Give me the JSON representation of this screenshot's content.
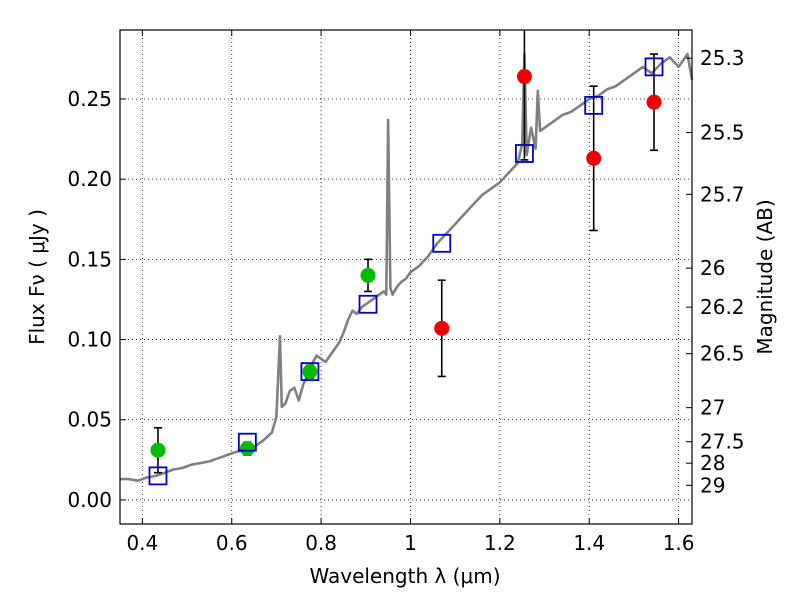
{
  "chart_data": {
    "type": "scatter",
    "xlabel": "Wavelength λ (μm)",
    "ylabel": "Flux  Fν  ( μJy )",
    "y2label": "Magnitude (AB)",
    "xlim": [
      0.35,
      1.63
    ],
    "ylim": [
      -0.015,
      0.293
    ],
    "grid": true,
    "x_ticks": [
      0.4,
      0.6,
      0.8,
      1.0,
      1.2,
      1.4,
      1.6
    ],
    "x_tick_labels": [
      "0.4",
      "0.6",
      "0.8",
      "1",
      "1.2",
      "1.4",
      "1.6"
    ],
    "y_ticks": [
      0.0,
      0.05,
      0.1,
      0.15,
      0.2,
      0.25
    ],
    "y_tick_labels": [
      "0.00",
      "0.05",
      "0.10",
      "0.15",
      "0.20",
      "0.25"
    ],
    "mag_ticks": [
      {
        "label": "25.3",
        "mag": 25.3
      },
      {
        "label": "25.5",
        "mag": 25.5
      },
      {
        "label": "25.7",
        "mag": 25.7
      },
      {
        "label": "26",
        "mag": 26.0
      },
      {
        "label": "26.2",
        "mag": 26.2
      },
      {
        "label": "26.5",
        "mag": 26.5
      },
      {
        "label": "27",
        "mag": 27.0
      },
      {
        "label": "27.5",
        "mag": 27.5
      },
      {
        "label": "28",
        "mag": 28.0
      },
      {
        "label": "29",
        "mag": 29.0
      }
    ],
    "series": [
      {
        "kind": "line",
        "color": "#808080",
        "x": [
          0.35,
          0.37,
          0.39,
          0.41,
          0.43,
          0.45,
          0.47,
          0.49,
          0.51,
          0.53,
          0.55,
          0.57,
          0.59,
          0.61,
          0.63,
          0.65,
          0.67,
          0.69,
          0.7,
          0.708,
          0.712,
          0.72,
          0.73,
          0.74,
          0.75,
          0.76,
          0.77,
          0.78,
          0.79,
          0.8,
          0.81,
          0.82,
          0.83,
          0.84,
          0.85,
          0.86,
          0.87,
          0.88,
          0.89,
          0.9,
          0.91,
          0.92,
          0.93,
          0.94,
          0.946,
          0.95,
          0.955,
          0.96,
          0.97,
          0.98,
          0.99,
          1.0,
          1.02,
          1.04,
          1.06,
          1.08,
          1.1,
          1.12,
          1.14,
          1.16,
          1.18,
          1.2,
          1.22,
          1.24,
          1.25,
          1.255,
          1.26,
          1.265,
          1.27,
          1.28,
          1.285,
          1.29,
          1.3,
          1.32,
          1.34,
          1.36,
          1.38,
          1.4,
          1.42,
          1.44,
          1.46,
          1.48,
          1.5,
          1.52,
          1.54,
          1.56,
          1.58,
          1.6,
          1.62,
          1.63
        ],
        "y": [
          0.013,
          0.013,
          0.012,
          0.014,
          0.015,
          0.017,
          0.019,
          0.02,
          0.022,
          0.023,
          0.024,
          0.026,
          0.028,
          0.03,
          0.031,
          0.033,
          0.037,
          0.042,
          0.052,
          0.102,
          0.058,
          0.06,
          0.068,
          0.07,
          0.062,
          0.072,
          0.078,
          0.085,
          0.09,
          0.088,
          0.086,
          0.09,
          0.094,
          0.098,
          0.104,
          0.112,
          0.118,
          0.116,
          0.12,
          0.122,
          0.124,
          0.126,
          0.128,
          0.13,
          0.128,
          0.237,
          0.132,
          0.128,
          0.133,
          0.136,
          0.138,
          0.142,
          0.146,
          0.152,
          0.16,
          0.166,
          0.172,
          0.178,
          0.184,
          0.19,
          0.194,
          0.198,
          0.204,
          0.21,
          0.222,
          0.278,
          0.215,
          0.224,
          0.232,
          0.219,
          0.255,
          0.23,
          0.232,
          0.236,
          0.24,
          0.242,
          0.246,
          0.25,
          0.252,
          0.256,
          0.258,
          0.262,
          0.266,
          0.27,
          0.266,
          0.272,
          0.276,
          0.27,
          0.278,
          0.262
        ]
      },
      {
        "kind": "points",
        "marker": "circle",
        "color": "#00bb00",
        "points": [
          {
            "x": 0.435,
            "y": 0.031,
            "err": 0.014
          },
          {
            "x": 0.635,
            "y": 0.032,
            "err": 0.004
          },
          {
            "x": 0.775,
            "y": 0.08,
            "err": 0.004
          },
          {
            "x": 0.905,
            "y": 0.14,
            "err": 0.01
          }
        ]
      },
      {
        "kind": "points",
        "marker": "circle",
        "color": "#ee0000",
        "points": [
          {
            "x": 1.07,
            "y": 0.107,
            "err": 0.03
          },
          {
            "x": 1.255,
            "y": 0.264,
            "err": 0.052
          },
          {
            "x": 1.41,
            "y": 0.213,
            "err": 0.045
          },
          {
            "x": 1.545,
            "y": 0.248,
            "err": 0.03
          }
        ]
      },
      {
        "kind": "points",
        "marker": "open-square",
        "color": "#0000cc",
        "points": [
          {
            "x": 0.435,
            "y": 0.015
          },
          {
            "x": 0.635,
            "y": 0.036
          },
          {
            "x": 0.775,
            "y": 0.08
          },
          {
            "x": 0.905,
            "y": 0.122
          },
          {
            "x": 1.07,
            "y": 0.16
          },
          {
            "x": 1.255,
            "y": 0.216
          },
          {
            "x": 1.41,
            "y": 0.246
          },
          {
            "x": 1.545,
            "y": 0.27
          }
        ]
      }
    ]
  }
}
